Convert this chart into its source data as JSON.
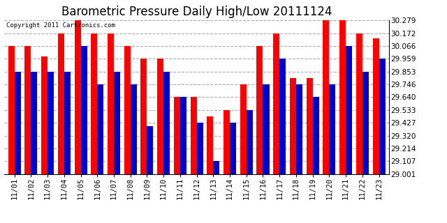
{
  "title": "Barometric Pressure Daily High/Low 20111124",
  "copyright": "Copyright 2011 Cartronics.com",
  "labels": [
    "11/01",
    "11/02",
    "11/03",
    "11/04",
    "11/05",
    "11/06",
    "11/07",
    "11/08",
    "11/09",
    "11/10",
    "11/11",
    "11/12",
    "11/13",
    "11/14",
    "11/15",
    "11/16",
    "11/17",
    "11/18",
    "11/19",
    "11/20",
    "11/21",
    "11/22",
    "11/23"
  ],
  "highs": [
    30.066,
    30.066,
    29.98,
    30.172,
    30.279,
    30.172,
    30.172,
    30.066,
    29.959,
    29.959,
    29.64,
    29.64,
    29.48,
    29.533,
    29.746,
    30.066,
    30.172,
    29.8,
    29.8,
    30.279,
    30.279,
    30.172,
    30.13
  ],
  "lows": [
    29.853,
    29.853,
    29.853,
    29.853,
    30.066,
    29.746,
    29.853,
    29.746,
    29.4,
    29.853,
    29.64,
    29.427,
    29.107,
    29.427,
    29.533,
    29.746,
    29.959,
    29.746,
    29.64,
    29.746,
    30.066,
    29.853,
    29.959
  ],
  "ymin": 29.001,
  "ymax": 30.279,
  "yticks": [
    29.001,
    29.107,
    29.214,
    29.32,
    29.427,
    29.533,
    29.64,
    29.746,
    29.853,
    29.959,
    30.066,
    30.172,
    30.279
  ],
  "bar_width": 0.38,
  "high_color": "#ff0000",
  "low_color": "#0000cc",
  "bg_color": "#ffffff",
  "grid_color": "#aaaaaa",
  "title_fontsize": 12,
  "tick_fontsize": 7.5
}
